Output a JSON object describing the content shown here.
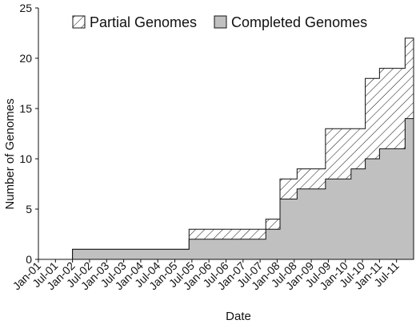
{
  "chart_data": {
    "type": "area",
    "stacked": true,
    "step": true,
    "xlabel": "Date",
    "ylabel": "Number of Genomes",
    "ylim": [
      0,
      25
    ],
    "yticks": [
      0,
      5,
      10,
      15,
      20,
      25
    ],
    "xlim": [
      "2001-01",
      "2011-12"
    ],
    "xticks": [
      "Jan-01",
      "Jul-01",
      "Jan-02",
      "Jul-02",
      "Jan-03",
      "Jul-03",
      "Jan-04",
      "Jul-04",
      "Jan-05",
      "Jul-05",
      "Jan-06",
      "Jul-06",
      "Jan-07",
      "Jul-07",
      "Jan-08",
      "Jul-08",
      "Jan-09",
      "Jul-09",
      "Jan-10",
      "Jul-10",
      "Jan-11",
      "Jul-11"
    ],
    "grid": false,
    "legend_position": "top",
    "series": [
      {
        "name": "Completed Genomes",
        "fill": "#c0c0c0",
        "pattern": "solid",
        "points": [
          {
            "date": "2001-01",
            "value": 0
          },
          {
            "date": "2002-01",
            "value": 1
          },
          {
            "date": "2005-06",
            "value": 2
          },
          {
            "date": "2007-09",
            "value": 3
          },
          {
            "date": "2008-02",
            "value": 6
          },
          {
            "date": "2008-08",
            "value": 7
          },
          {
            "date": "2009-06",
            "value": 8
          },
          {
            "date": "2010-03",
            "value": 9
          },
          {
            "date": "2010-08",
            "value": 10
          },
          {
            "date": "2011-01",
            "value": 11
          },
          {
            "date": "2011-10",
            "value": 14
          }
        ]
      },
      {
        "name": "Partial Genomes",
        "fill": "#ffffff",
        "pattern": "hatch",
        "points": [
          {
            "date": "2001-01",
            "value": 0
          },
          {
            "date": "2005-06",
            "value": 1
          },
          {
            "date": "2007-06",
            "value": 1
          },
          {
            "date": "2008-02",
            "value": 2
          },
          {
            "date": "2009-06",
            "value": 5
          },
          {
            "date": "2010-08",
            "value": 8
          },
          {
            "date": "2011-01",
            "value": 8
          },
          {
            "date": "2011-10",
            "value": 8
          }
        ]
      }
    ],
    "totals": [
      {
        "date": "2001-01",
        "value": 0
      },
      {
        "date": "2002-01",
        "value": 1
      },
      {
        "date": "2005-06",
        "value": 3
      },
      {
        "date": "2007-06",
        "value": 3
      },
      {
        "date": "2007-09",
        "value": 4
      },
      {
        "date": "2008-02",
        "value": 8
      },
      {
        "date": "2008-08",
        "value": 9
      },
      {
        "date": "2009-06",
        "value": 13
      },
      {
        "date": "2010-08",
        "value": 18
      },
      {
        "date": "2011-01",
        "value": 19
      },
      {
        "date": "2011-10",
        "value": 22
      }
    ]
  }
}
